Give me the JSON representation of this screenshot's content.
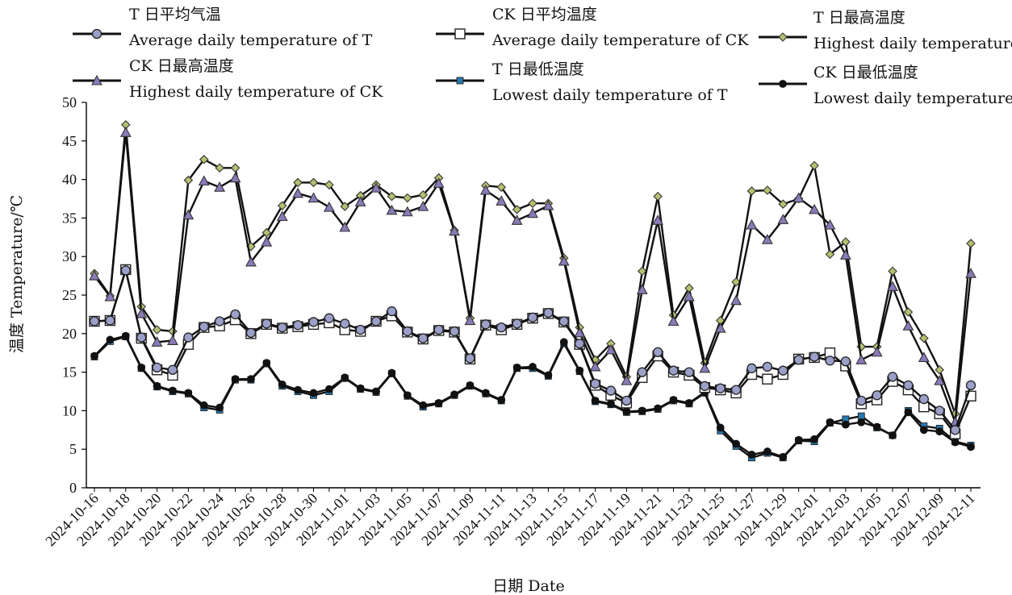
{
  "chart_data": {
    "type": "line",
    "xlabel": "日期 Date",
    "ylabel": "温度 Temperature/℃",
    "ylim": [
      0,
      50
    ],
    "ytick_step": 5,
    "x_tick_labels": [
      "2024-10-16",
      "2024-10-18",
      "2024-10-20",
      "2024-10-22",
      "2024-10-24",
      "2024-10-26",
      "2024-10-28",
      "2024-10-30",
      "2024-11-01",
      "2024-11-03",
      "2024-11-05",
      "2024-11-07",
      "2024-11-09",
      "2024-11-11",
      "2024-11-13",
      "2024-11-15",
      "2024-11-17",
      "2024-11-19",
      "2024-11-21",
      "2024-11-23",
      "2024-11-25",
      "2024-11-27",
      "2024-11-29",
      "2024-12-01",
      "2024-12-03",
      "2024-12-05",
      "2024-12-07",
      "2024-12-09",
      "2024-12-11"
    ],
    "num_points": 57,
    "series": [
      {
        "name_cn": "T 日平均气温",
        "name_en": "Average daily temperature of T",
        "marker": "circle",
        "color": "#222222",
        "values": [
          21.6,
          21.7,
          28.2,
          19.5,
          15.6,
          15.3,
          19.5,
          20.9,
          21.6,
          22.5,
          20.1,
          21.3,
          20.8,
          21.1,
          21.5,
          22.0,
          21.3,
          20.5,
          21.6,
          22.9,
          20.3,
          19.4,
          20.5,
          20.3,
          16.8,
          21.2,
          20.8,
          21.3,
          22.1,
          22.7,
          21.6,
          18.7,
          13.5,
          12.6,
          11.3,
          15.0,
          17.6,
          15.2,
          15.0,
          13.2,
          12.9,
          12.7,
          15.5,
          15.7,
          15.2,
          16.6,
          17.0,
          16.5,
          16.4,
          11.3,
          12.0,
          14.4,
          13.3,
          11.5,
          10.0,
          7.5,
          13.3
        ]
      },
      {
        "name_cn": "CK 日平均温度",
        "name_en": "Average daily temperature of CK",
        "marker": "square",
        "color": "#222222",
        "values": [
          21.6,
          21.7,
          28.3,
          19.4,
          15.3,
          14.6,
          18.6,
          20.8,
          21.0,
          21.8,
          20.0,
          21.2,
          20.7,
          20.9,
          21.2,
          21.4,
          20.5,
          20.3,
          21.6,
          22.3,
          20.2,
          19.3,
          20.4,
          20.2,
          16.7,
          21.1,
          20.5,
          21.2,
          22.0,
          22.6,
          21.5,
          18.6,
          13.3,
          12.0,
          11.0,
          14.3,
          17.1,
          15.0,
          14.6,
          13.0,
          12.7,
          12.3,
          14.7,
          14.1,
          14.7,
          16.7,
          16.9,
          17.5,
          15.8,
          10.9,
          11.4,
          13.8,
          12.7,
          10.5,
          9.6,
          7.0,
          11.9
        ]
      },
      {
        "name_cn": "T 日最高温度",
        "name_en": "Highest daily temperature of T",
        "marker": "diamond",
        "color": "#5a5a2a",
        "values": [
          27.8,
          24.9,
          47.1,
          23.5,
          20.5,
          20.3,
          39.9,
          42.6,
          41.5,
          41.5,
          31.3,
          33.1,
          36.6,
          39.6,
          39.6,
          39.3,
          36.5,
          37.9,
          39.3,
          37.8,
          37.6,
          38.0,
          40.2,
          33.4,
          22.0,
          39.2,
          39.0,
          36.1,
          36.9,
          36.9,
          29.8,
          20.8,
          16.6,
          18.7,
          14.4,
          28.1,
          37.8,
          22.4,
          25.9,
          16.2,
          21.7,
          26.7,
          38.5,
          38.6,
          36.8,
          37.5,
          41.8,
          30.3,
          31.9,
          18.3,
          18.3,
          28.1,
          22.8,
          19.4,
          15.3,
          9.6,
          31.7
        ]
      },
      {
        "name_cn": "CK 日最高温度",
        "name_en": "Highest daily temperature of CK",
        "marker": "triangle",
        "color": "#5a4a8a",
        "values": [
          27.5,
          24.8,
          46.1,
          22.6,
          18.9,
          19.1,
          35.4,
          39.8,
          39.0,
          40.2,
          29.3,
          31.9,
          35.2,
          38.2,
          37.6,
          36.4,
          33.8,
          37.1,
          38.9,
          36.0,
          35.8,
          36.5,
          39.5,
          33.3,
          21.7,
          38.6,
          37.2,
          34.7,
          35.6,
          36.6,
          29.4,
          20.1,
          15.7,
          17.9,
          13.9,
          25.7,
          34.7,
          21.6,
          24.8,
          15.5,
          20.7,
          24.3,
          34.1,
          32.2,
          34.8,
          37.6,
          36.1,
          34.1,
          30.2,
          16.6,
          17.6,
          26.1,
          21.0,
          16.9,
          13.9,
          8.5,
          27.8
        ]
      },
      {
        "name_cn": "T 日最低温度",
        "name_en": "Lowest daily temperature of T",
        "marker": "filled-square",
        "color": "#2a7ab0",
        "values": [
          17.0,
          19.0,
          19.6,
          15.5,
          13.1,
          12.5,
          12.2,
          10.4,
          10.1,
          14.0,
          14.0,
          16.1,
          13.2,
          12.5,
          12.0,
          12.5,
          14.2,
          12.8,
          12.4,
          14.8,
          11.9,
          10.5,
          10.9,
          12.0,
          13.2,
          12.2,
          11.3,
          15.5,
          15.5,
          14.5,
          18.7,
          15.1,
          11.2,
          10.8,
          9.8,
          9.9,
          10.2,
          11.3,
          10.9,
          12.3,
          7.4,
          5.4,
          3.9,
          4.5,
          3.9,
          6.1,
          6.0,
          8.4,
          8.9,
          9.3,
          7.8,
          6.8,
          10.0,
          8.0,
          7.7,
          6.0,
          5.5
        ]
      },
      {
        "name_cn": "CK 日最低温度",
        "name_en": "Lowest daily temperature of CK",
        "marker": "filled-circle",
        "color": "#111111",
        "values": [
          17.1,
          19.2,
          19.7,
          15.6,
          13.2,
          12.6,
          12.3,
          10.7,
          10.4,
          14.1,
          14.1,
          16.2,
          13.4,
          12.7,
          12.3,
          12.8,
          14.3,
          12.9,
          12.5,
          14.9,
          12.0,
          10.7,
          11.0,
          12.1,
          13.3,
          12.3,
          11.4,
          15.6,
          15.7,
          14.6,
          18.9,
          15.2,
          11.3,
          10.9,
          9.9,
          10.0,
          10.3,
          11.4,
          11.0,
          12.4,
          7.8,
          5.7,
          4.3,
          4.7,
          4.0,
          6.2,
          6.3,
          8.5,
          8.2,
          8.5,
          7.9,
          6.8,
          9.8,
          7.5,
          7.3,
          5.9,
          5.3
        ]
      }
    ]
  }
}
